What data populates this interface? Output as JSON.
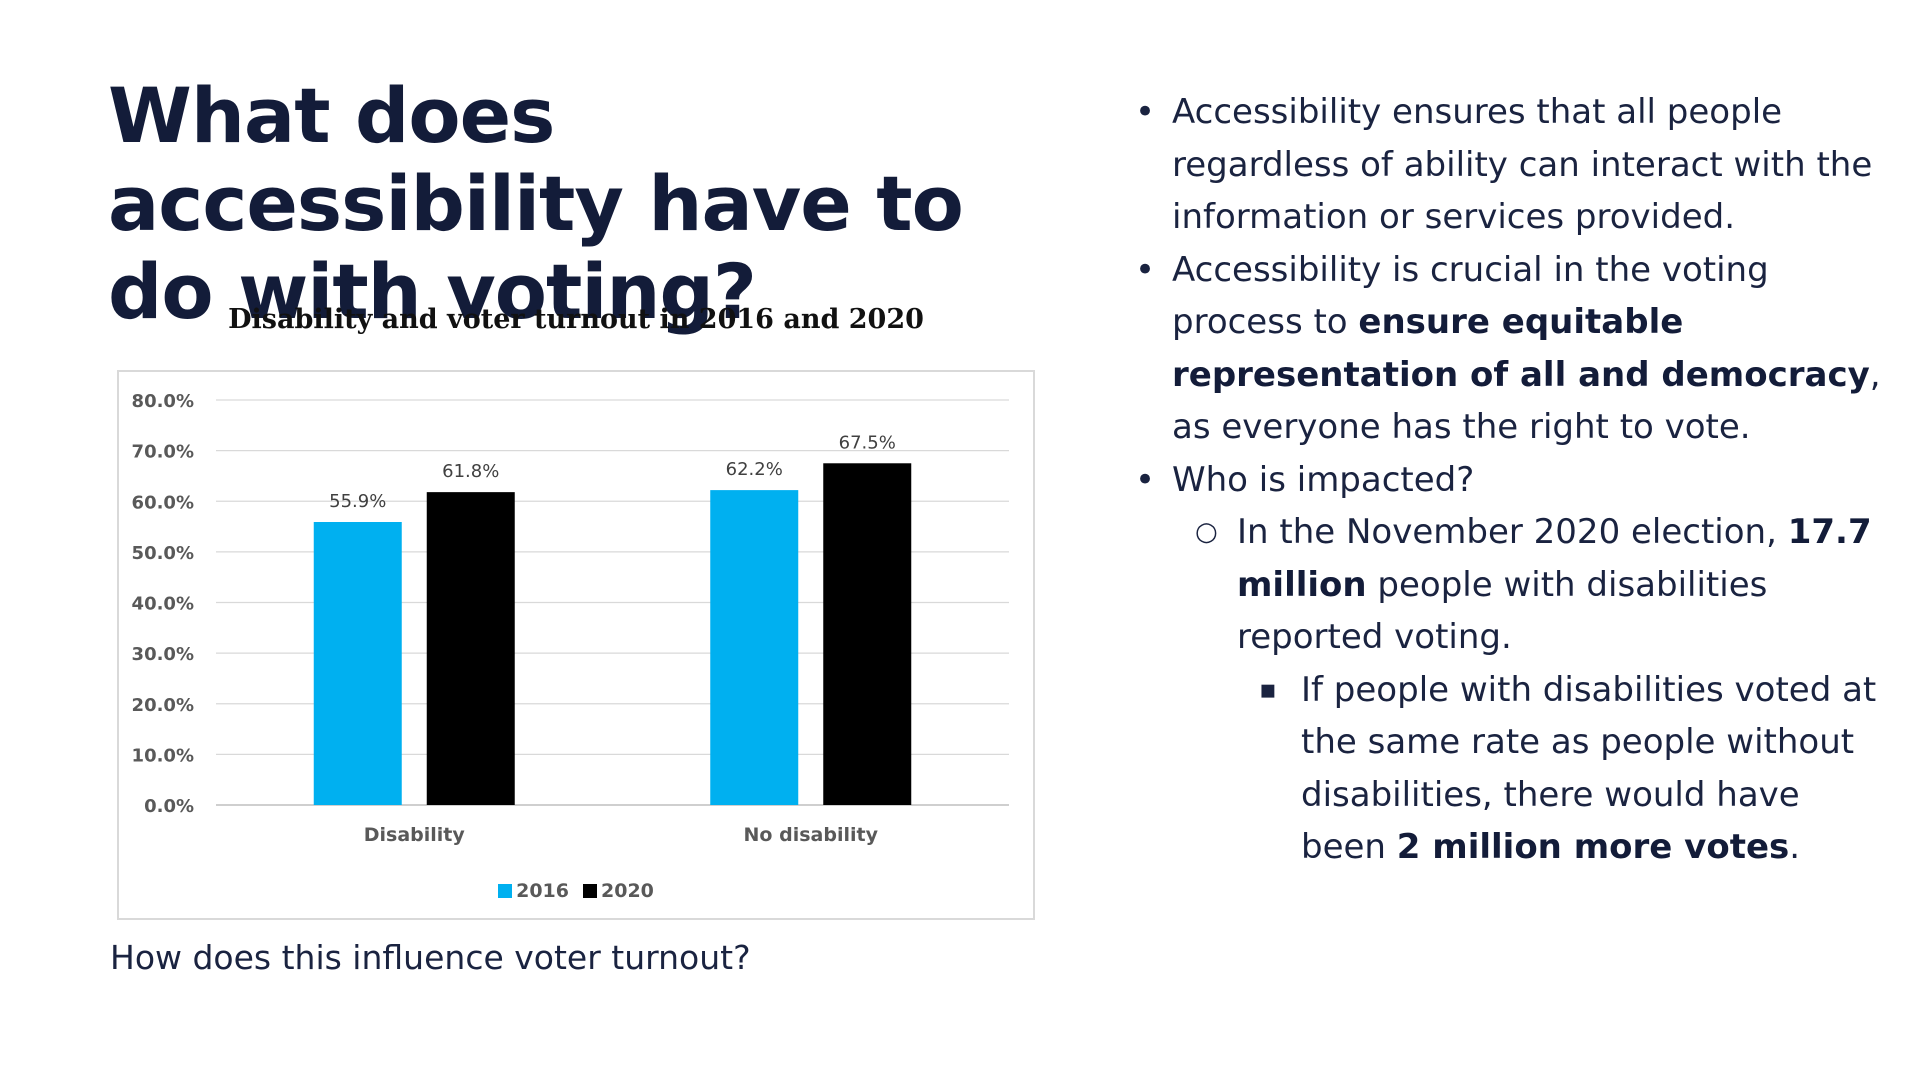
{
  "title": "What does accessibility have to do with voting?",
  "chart_data": {
    "type": "bar",
    "title": "Disability and voter turnout in 2016 and 2020",
    "categories": [
      "Disability",
      "No disability"
    ],
    "series": [
      {
        "name": "2016",
        "values": [
          55.9,
          62.2
        ],
        "labels": [
          "55.9%",
          "62.2%"
        ],
        "color": "#00b0f0"
      },
      {
        "name": "2020",
        "values": [
          61.8,
          67.5
        ],
        "labels": [
          "61.8%",
          "67.5%"
        ],
        "color": "#000000"
      }
    ],
    "ylim": [
      0,
      80
    ],
    "yticks": [
      "0.0%",
      "10.0%",
      "20.0%",
      "30.0%",
      "40.0%",
      "50.0%",
      "60.0%",
      "70.0%",
      "80.0%"
    ],
    "grid": true,
    "legend_position": "bottom",
    "xlabel": "",
    "ylabel": ""
  },
  "caption": "How does this influence voter turnout?",
  "bullets": {
    "b1": "Accessibility ensures that all people regardless of ability can interact with the information or services provided.",
    "b2_pre": "Accessibility is crucial in the voting process to ",
    "b2_bold": "ensure equitable representation of all and democracy",
    "b2_post": ", as everyone has the right to vote.",
    "b3": "Who is impacted?",
    "s1_pre": "In the November 2020 election, ",
    "s1_bold": "17.7 million",
    "s1_post": " people with disabilities reported voting.",
    "t1_pre": "If people with disabilities voted at the same rate as people without disabilities, there would have been ",
    "t1_bold": "2 million more votes",
    "t1_post": "."
  }
}
